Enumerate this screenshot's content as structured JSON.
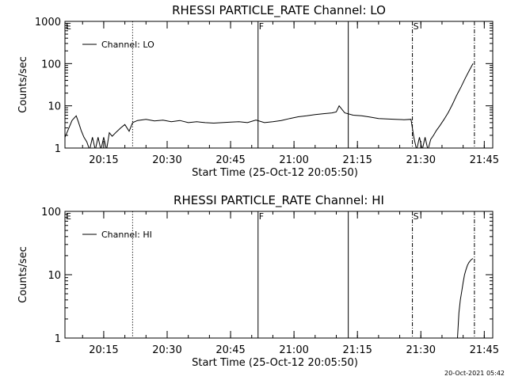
{
  "chart_data": [
    {
      "type": "line",
      "title": "RHESSI PARTICLE_RATE Channel: LO",
      "xlabel": "Start Time (25-Oct-12 20:05:50)",
      "ylabel": "Counts/sec",
      "yscale": "log",
      "ylim": [
        1,
        1000
      ],
      "xlim": [
        "20:05:50",
        "21:47:00"
      ],
      "xticks": [
        "20:15",
        "20:30",
        "20:45",
        "21:00",
        "21:15",
        "21:30",
        "21:45"
      ],
      "yticks": [
        "1",
        "10",
        "100",
        "1000"
      ],
      "legend": {
        "position": "top-left",
        "entries": [
          "Channel: LO"
        ]
      },
      "markers": [
        {
          "label": "E",
          "time": "20:05:50",
          "style": "none"
        },
        {
          "time": "20:21:50",
          "style": "dotted"
        },
        {
          "label": "F",
          "time": "20:51:30",
          "style": "solid"
        },
        {
          "time": "21:12:50",
          "style": "solid"
        },
        {
          "label": "S",
          "time": "21:28:00",
          "style": "dashdot"
        },
        {
          "time": "21:42:40",
          "style": "dashdot"
        }
      ],
      "series": [
        {
          "x": [
            "20:05:50",
            "20:06:30",
            "20:07:30",
            "20:08:30",
            "20:09:00",
            "20:09:40",
            "20:10:20",
            "20:11:00",
            "20:11:40",
            "20:12:20",
            "20:13:00",
            "20:13:40",
            "20:14:20",
            "20:15:00",
            "20:15:40",
            "20:16:20",
            "20:17:00",
            "20:18:00",
            "20:19:00",
            "20:20:00",
            "20:21:00",
            "20:21:50",
            "20:23:00",
            "20:25:00",
            "20:27:00",
            "20:29:00",
            "20:31:00",
            "20:33:00",
            "20:35:00",
            "20:37:00",
            "20:39:00",
            "20:41:00",
            "20:43:00",
            "20:45:00",
            "20:47:00",
            "20:49:00",
            "20:51:00",
            "20:53:00",
            "20:55:00",
            "20:57:00",
            "20:59:00",
            "21:01:00",
            "21:03:00",
            "21:05:00",
            "21:07:00",
            "21:09:00",
            "21:10:00",
            "21:10:40",
            "21:12:00",
            "21:14:00",
            "21:16:00",
            "21:18:00",
            "21:20:00",
            "21:22:00",
            "21:24:00",
            "21:26:00",
            "21:27:40",
            "21:28:20",
            "21:29:00",
            "21:29:40",
            "21:30:20",
            "21:31:00",
            "21:31:40",
            "21:32:20",
            "21:33:00",
            "21:33:40",
            "21:34:30",
            "21:35:30",
            "21:36:30",
            "21:37:30",
            "21:38:30",
            "21:39:30",
            "21:40:30",
            "21:41:30",
            "21:42:20"
          ],
          "values": [
            1.8,
            2.6,
            4.5,
            5.8,
            4.2,
            2.6,
            1.8,
            1.4,
            0.9,
            1.8,
            0.9,
            1.8,
            0.9,
            1.8,
            0.9,
            2.3,
            1.9,
            2.4,
            3.0,
            3.6,
            2.5,
            4.0,
            4.5,
            4.8,
            4.4,
            4.6,
            4.2,
            4.5,
            4.0,
            4.2,
            4.0,
            3.9,
            4.0,
            4.1,
            4.2,
            4.0,
            4.6,
            4.0,
            4.2,
            4.5,
            5.0,
            5.5,
            5.8,
            6.2,
            6.5,
            6.8,
            7.2,
            10.0,
            6.8,
            6.0,
            5.8,
            5.4,
            5.0,
            4.9,
            4.8,
            4.7,
            4.8,
            1.8,
            0.9,
            1.8,
            0.9,
            1.8,
            0.9,
            1.6,
            2.0,
            2.6,
            3.4,
            4.8,
            7.0,
            11.0,
            18.0,
            28.0,
            45.0,
            70.0,
            100.0
          ]
        }
      ]
    },
    {
      "type": "line",
      "title": "RHESSI PARTICLE_RATE Channel: HI",
      "xlabel": "Start Time (25-Oct-12 20:05:50)",
      "ylabel": "Counts/sec",
      "yscale": "log",
      "ylim": [
        1,
        100
      ],
      "xlim": [
        "20:05:50",
        "21:47:00"
      ],
      "xticks": [
        "20:15",
        "20:30",
        "20:45",
        "21:00",
        "21:15",
        "21:30",
        "21:45"
      ],
      "yticks": [
        "1",
        "10",
        "100"
      ],
      "legend": {
        "position": "top-left",
        "entries": [
          "Channel: HI"
        ]
      },
      "markers": [
        {
          "label": "E",
          "time": "20:05:50",
          "style": "none"
        },
        {
          "time": "20:21:50",
          "style": "dotted"
        },
        {
          "label": "F",
          "time": "20:51:30",
          "style": "solid"
        },
        {
          "time": "21:12:50",
          "style": "solid"
        },
        {
          "label": "S",
          "time": "21:28:00",
          "style": "dashdot"
        },
        {
          "time": "21:42:40",
          "style": "dashdot"
        }
      ],
      "series": [
        {
          "x": [
            "21:38:40",
            "21:39:00",
            "21:39:20",
            "21:39:40",
            "21:40:00",
            "21:40:20",
            "21:40:40",
            "21:41:00",
            "21:41:20",
            "21:41:40",
            "21:42:00",
            "21:42:20"
          ],
          "values": [
            1.0,
            2.5,
            4.0,
            5.5,
            7.5,
            10.0,
            12.0,
            14.0,
            15.5,
            16.5,
            17.5,
            18.0
          ]
        }
      ]
    }
  ],
  "footer": {
    "timestamp": "20-Oct-2021 05:42"
  }
}
